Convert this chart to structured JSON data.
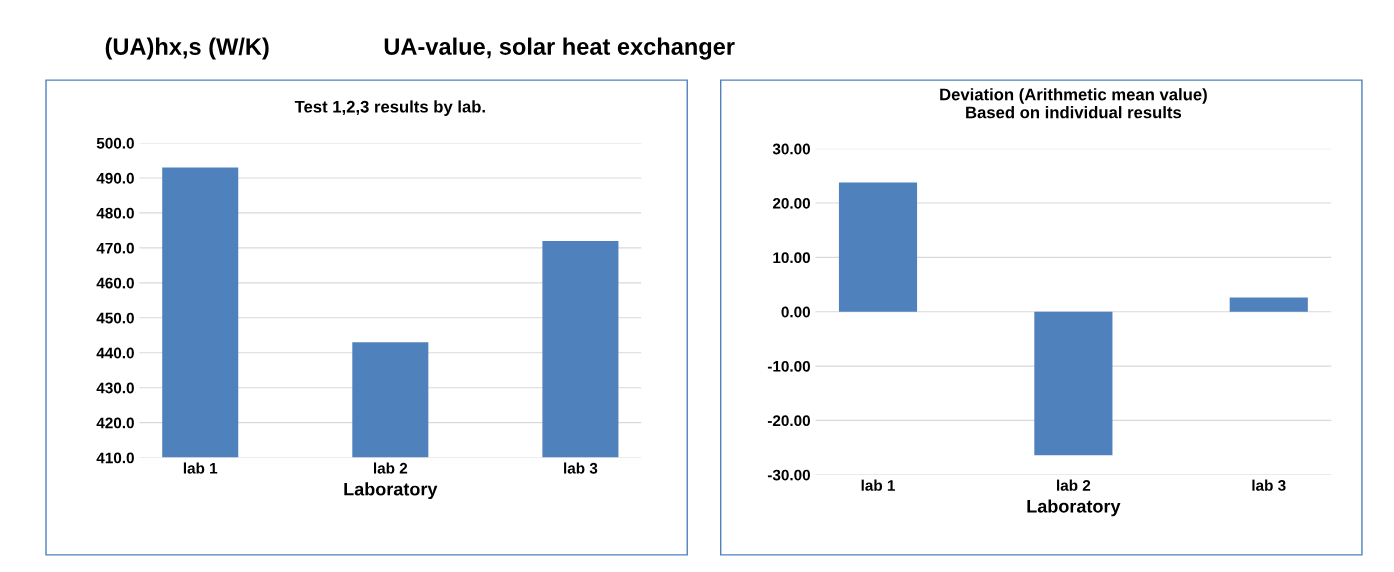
{
  "chart_data": [
    {
      "type": "bar",
      "title": "Test 1,2,3 results by lab.",
      "xlabel": "Laboratory",
      "categories": [
        "lab 1",
        "lab 2",
        "lab 3"
      ],
      "values": [
        493,
        443,
        472
      ],
      "color": "#4f81bd",
      "ylim": [
        410,
        500
      ],
      "yticks": [
        {
          "value": 410,
          "label": "410.0"
        },
        {
          "value": 420,
          "label": "420.0"
        },
        {
          "value": 430,
          "label": "430.0"
        },
        {
          "value": 440,
          "label": "440.0"
        },
        {
          "value": 450,
          "label": "450.0"
        },
        {
          "value": 460,
          "label": "460.0"
        },
        {
          "value": 470,
          "label": "470.0"
        },
        {
          "value": 480,
          "label": "480.0"
        },
        {
          "value": 490,
          "label": "490.0"
        },
        {
          "value": 500,
          "label": "500.0"
        }
      ],
      "grid": "y",
      "annotations": [
        "(UA)hx,s (W/K)",
        "UA-value, solar heat exchanger"
      ]
    },
    {
      "type": "bar",
      "title": "Deviation (Arithmetic mean value)\nBased on individual results",
      "xlabel": "Laboratory",
      "categories": [
        "lab 1",
        "lab 2",
        "lab 3"
      ],
      "values": [
        23.8,
        -26.4,
        2.6
      ],
      "color": "#4f81bd",
      "ylim": [
        -30,
        30
      ],
      "yticks": [
        {
          "value": -30,
          "label": "-30.00"
        },
        {
          "value": -20,
          "label": "-20.00"
        },
        {
          "value": -10,
          "label": "-10.00"
        },
        {
          "value": 0,
          "label": "0.00"
        },
        {
          "value": 10,
          "label": "10.00"
        },
        {
          "value": 20,
          "label": "20.00"
        },
        {
          "value": 30,
          "label": "30.00"
        }
      ],
      "grid": "y"
    }
  ]
}
